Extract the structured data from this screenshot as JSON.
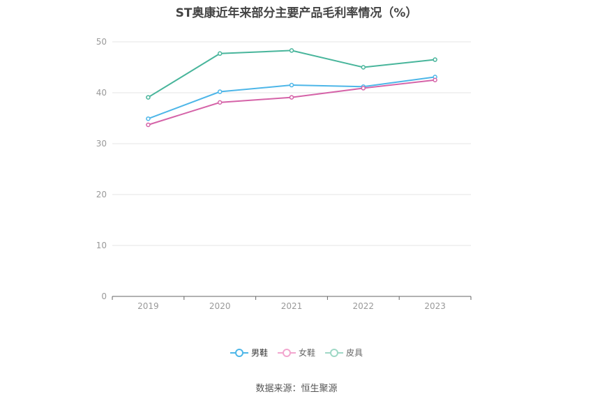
{
  "title": "ST奥康近年来部分主要产品毛利率情况（%）",
  "source": "数据来源：恒生聚源",
  "chart_data": {
    "type": "line",
    "title": "ST奥康近年来部分主要产品毛利率情况（%）",
    "xlabel": "",
    "ylabel": "",
    "categories": [
      "2019",
      "2020",
      "2021",
      "2022",
      "2023"
    ],
    "ylim": [
      0,
      50
    ],
    "yticks": [
      0,
      10,
      20,
      30,
      40,
      50
    ],
    "grid": true,
    "legend_position": "bottom",
    "series": [
      {
        "name": "男鞋",
        "color": "#4db6e8",
        "values": [
          34.9,
          40.2,
          41.5,
          41.2,
          43.1
        ]
      },
      {
        "name": "女鞋",
        "color": "#d563a8",
        "values": [
          33.7,
          38.1,
          39.1,
          40.9,
          42.5
        ]
      },
      {
        "name": "皮具",
        "color": "#48b59b",
        "values": [
          39.1,
          47.7,
          48.3,
          45.0,
          46.5
        ]
      }
    ]
  },
  "legend": [
    {
      "label": "男鞋",
      "color": "#4db6e8"
    },
    {
      "label": "女鞋",
      "color": "#f2a6cf"
    },
    {
      "label": "皮具",
      "color": "#9fd8c6"
    }
  ]
}
